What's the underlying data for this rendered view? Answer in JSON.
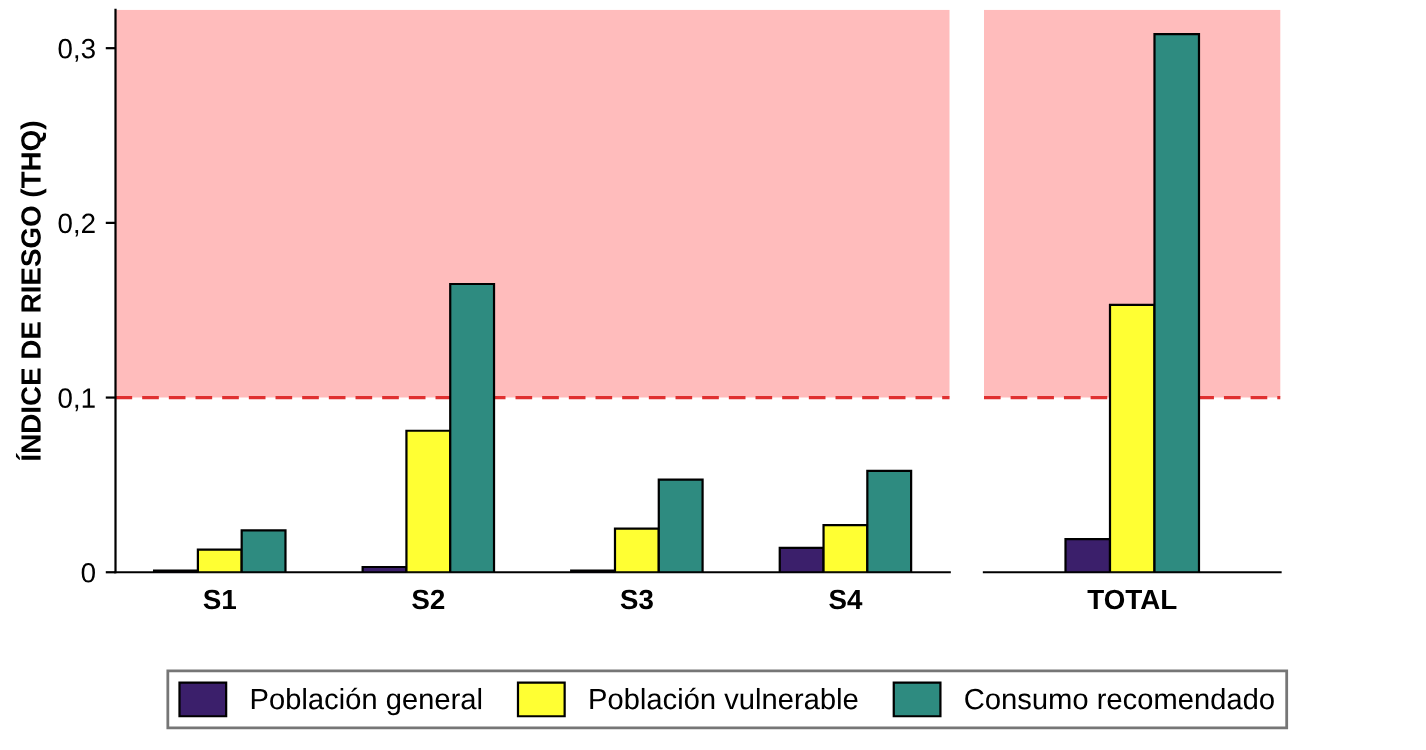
{
  "chart_data": [
    {
      "type": "bar",
      "ylabel": "ÍNDICE DE RIESGO (THQ)",
      "categories": [
        "S1",
        "S2",
        "S3",
        "S4"
      ],
      "series": [
        {
          "name": "Población general",
          "color": "#3b1f6b",
          "values": [
            0.001,
            0.003,
            0.001,
            0.014
          ]
        },
        {
          "name": "Población vulnerable",
          "color": "#ffff33",
          "values": [
            0.013,
            0.081,
            0.025,
            0.027
          ]
        },
        {
          "name": "Consumo recomendado",
          "color": "#2e8b80",
          "values": [
            0.024,
            0.165,
            0.053,
            0.058
          ]
        }
      ],
      "ylim": [
        0,
        0.322
      ],
      "yticks": [
        0,
        {
          "value": 0.1,
          "label": "0,1"
        },
        {
          "value": 0.2,
          "label": "0,2"
        },
        {
          "value": 0.3,
          "label": "0,3"
        }
      ],
      "ref_lines": [
        {
          "axis": "y",
          "value": 0.1,
          "color": "#e03030",
          "line_style": "dashed"
        }
      ],
      "bands": [
        {
          "axis": "y",
          "from": 0.1,
          "to": 0.322,
          "color": "#ffbcbc"
        }
      ],
      "legend": "bottom"
    },
    {
      "type": "bar",
      "categories": [
        "TOTAL"
      ],
      "series": [
        {
          "name": "Población general",
          "color": "#3b1f6b",
          "values": [
            0.019
          ]
        },
        {
          "name": "Población vulnerable",
          "color": "#ffff33",
          "values": [
            0.153
          ]
        },
        {
          "name": "Consumo recomendado",
          "color": "#2e8b80",
          "values": [
            0.308
          ]
        }
      ],
      "ylim": [
        0,
        0.322
      ],
      "tick_labels": "x",
      "ref_lines": [
        {
          "axis": "y",
          "value": 0.1,
          "color": "#e03030",
          "line_style": "dashed"
        }
      ],
      "bands": [
        {
          "axis": "y",
          "from": 0.1,
          "to": 0.322,
          "color": "#ffbcbc"
        }
      ]
    }
  ]
}
